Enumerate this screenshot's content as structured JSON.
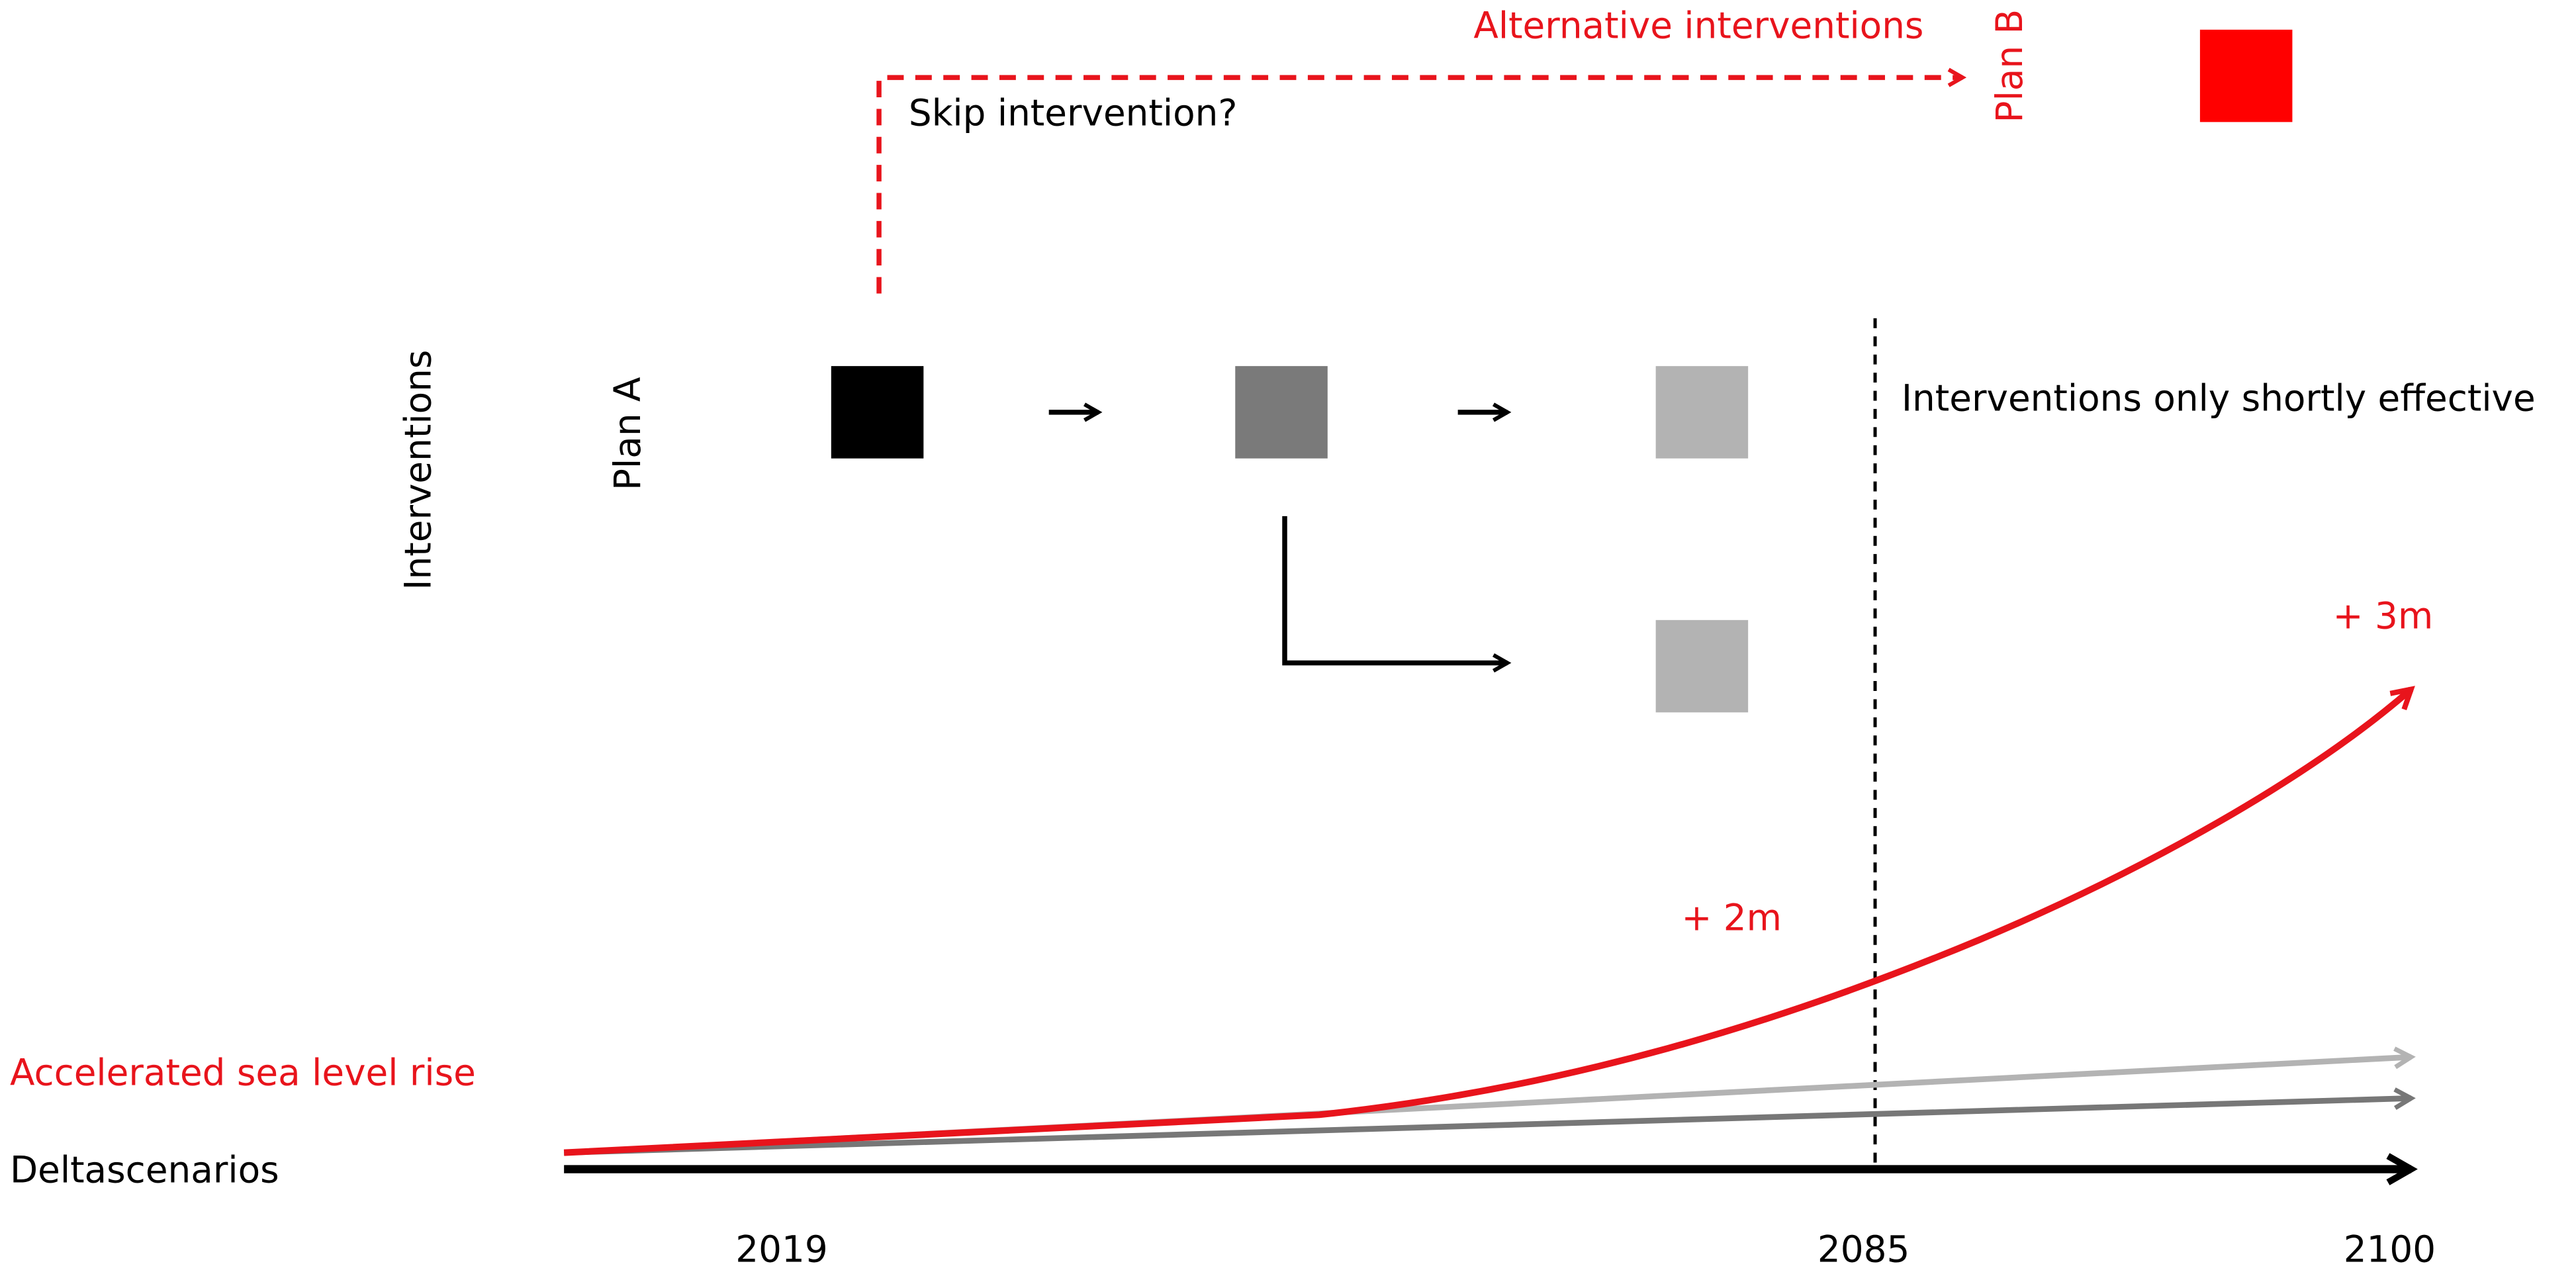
{
  "top": {
    "alternative": "Alternative interventions",
    "plan_b": "Plan B",
    "skip": "Skip intervention?"
  },
  "left": {
    "interventions": "Interventions",
    "plan_a": "Plan A"
  },
  "note": "Interventions only shortly effective",
  "rise": {
    "high": "+ 3m",
    "mid": "+ 2m"
  },
  "legend": {
    "accelerated": "Accelerated sea level rise",
    "delta": "Deltascenarios"
  },
  "years": [
    "2019",
    "2085",
    "2100"
  ]
}
